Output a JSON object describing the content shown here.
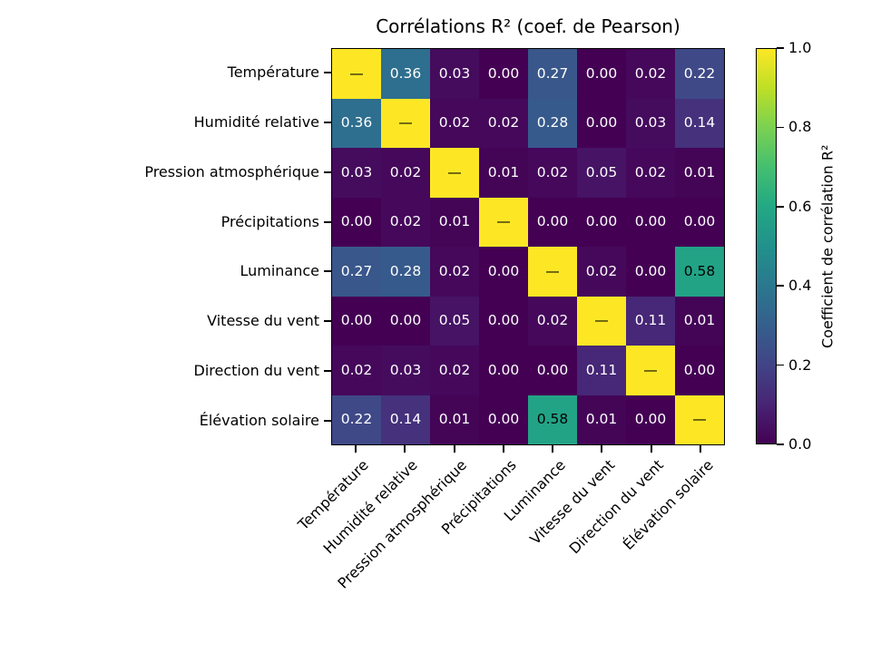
{
  "title": "Corrélations R² (coef. de Pearson)",
  "chart_data": {
    "type": "heatmap",
    "variables": [
      "Température",
      "Humidité relative",
      "Pression atmosphérique",
      "Précipitations",
      "Luminance",
      "Vitesse du vent",
      "Direction du vent",
      "Élévation solaire"
    ],
    "matrix": [
      [
        null,
        0.36,
        0.03,
        0.0,
        0.27,
        0.0,
        0.02,
        0.22
      ],
      [
        0.36,
        null,
        0.02,
        0.02,
        0.28,
        0.0,
        0.03,
        0.14
      ],
      [
        0.03,
        0.02,
        null,
        0.01,
        0.02,
        0.05,
        0.02,
        0.01
      ],
      [
        0.0,
        0.02,
        0.01,
        null,
        0.0,
        0.0,
        0.0,
        0.0
      ],
      [
        0.27,
        0.28,
        0.02,
        0.0,
        null,
        0.02,
        0.0,
        0.58
      ],
      [
        0.0,
        0.0,
        0.05,
        0.0,
        0.02,
        null,
        0.11,
        0.01
      ],
      [
        0.02,
        0.03,
        0.02,
        0.0,
        0.0,
        0.11,
        null,
        0.0
      ],
      [
        0.22,
        0.14,
        0.01,
        0.0,
        0.58,
        0.01,
        0.0,
        null
      ]
    ],
    "diagonal_marker": "—",
    "diagonal_value": 1.0,
    "value_decimals": 2,
    "vmin": 0.0,
    "vmax": 1.0,
    "colormap": "viridis",
    "colormap_anchors": [
      "#440154",
      "#482475",
      "#414487",
      "#355f8d",
      "#2a788e",
      "#21918c",
      "#22a884",
      "#44bf70",
      "#7ad151",
      "#bddf26",
      "#fde725"
    ],
    "annotation_colors": {
      "on_dark": "#ffffff",
      "on_light": "#000000"
    },
    "colorbar": {
      "label": "Coefficient de corrélation R²",
      "ticks": [
        0.0,
        0.2,
        0.4,
        0.6,
        0.8,
        1.0
      ],
      "tick_labels": [
        "0.0",
        "0.2",
        "0.4",
        "0.6",
        "0.8",
        "1.0"
      ]
    }
  }
}
